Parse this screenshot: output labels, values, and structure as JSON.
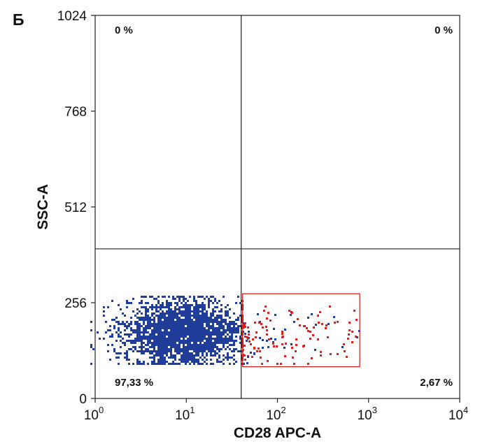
{
  "panel_label": "Б",
  "colors": {
    "negative_events": "#1f3d99",
    "positive_events": "#e0201e",
    "gate": "#e0201e",
    "axes": "#222222"
  },
  "chart_data": {
    "type": "scatter",
    "title": "",
    "xlabel": "CD28 APC-A",
    "ylabel": "SSC-A",
    "xscale": "log",
    "xlim": [
      1,
      10000
    ],
    "ylim": [
      0,
      1024
    ],
    "x_ticks": [
      {
        "value": 1,
        "base": "10",
        "exp": "0"
      },
      {
        "value": 10,
        "base": "10",
        "exp": "1"
      },
      {
        "value": 100,
        "base": "10",
        "exp": "2"
      },
      {
        "value": 1000,
        "base": "10",
        "exp": "3"
      },
      {
        "value": 10000,
        "base": "10",
        "exp": "4"
      }
    ],
    "y_ticks": [
      {
        "value": 0,
        "label": "0"
      },
      {
        "value": 256,
        "label": "256"
      },
      {
        "value": 512,
        "label": "512"
      },
      {
        "value": 768,
        "label": "768"
      },
      {
        "value": 1024,
        "label": "1024"
      }
    ],
    "quadrant_dividers": {
      "x": 40,
      "y": 400
    },
    "quadrants": [
      {
        "position": "top-left",
        "label": "0 %"
      },
      {
        "position": "top-right",
        "label": "0 %"
      },
      {
        "position": "bottom-left",
        "label": "97,33 %"
      },
      {
        "position": "bottom-right",
        "label": "2,67 %"
      }
    ],
    "gate": {
      "x_range": [
        40,
        800
      ],
      "y_range": [
        85,
        280
      ]
    },
    "series": [
      {
        "color": "#1f3d99",
        "distribution": {
          "log_x_mean": 0.95,
          "log_x_sd": 0.32,
          "log_x_range": [
            -0.05,
            1.6
          ],
          "y_mean": 180,
          "y_sd": 42,
          "y_range": [
            95,
            275
          ]
        }
      },
      {
        "color": "#e0201e",
        "distribution": {
          "log_x_range": [
            1.6,
            2.9
          ],
          "y_mean": 165,
          "y_sd": 40,
          "y_range": [
            95,
            270
          ]
        }
      }
    ],
    "grid": false,
    "legend": "none"
  }
}
